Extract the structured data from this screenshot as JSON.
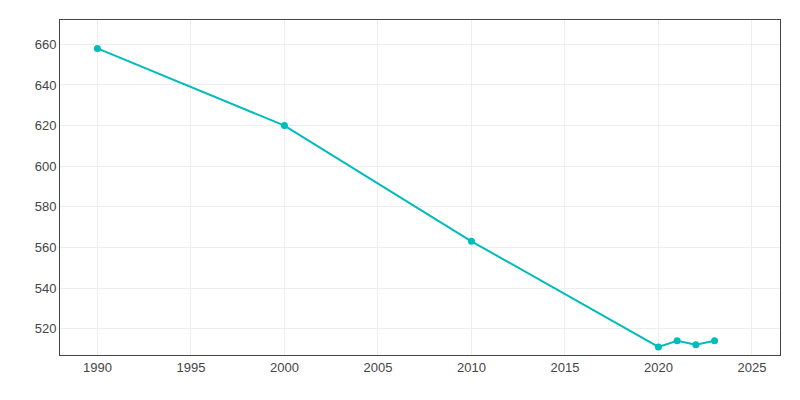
{
  "chart_data": {
    "type": "line",
    "x": [
      1990,
      2000,
      2010,
      2020,
      2021,
      2022,
      2023
    ],
    "values": [
      658,
      620,
      563,
      511,
      514,
      512,
      514
    ],
    "color": "#00BCBC",
    "marker": "circle",
    "xlim": [
      1988,
      2026.5
    ],
    "ylim": [
      507,
      672
    ],
    "xticks": [
      1990,
      1995,
      2000,
      2005,
      2010,
      2015,
      2020,
      2025
    ],
    "yticks": [
      520,
      540,
      560,
      580,
      600,
      620,
      640,
      660
    ],
    "grid": true
  }
}
